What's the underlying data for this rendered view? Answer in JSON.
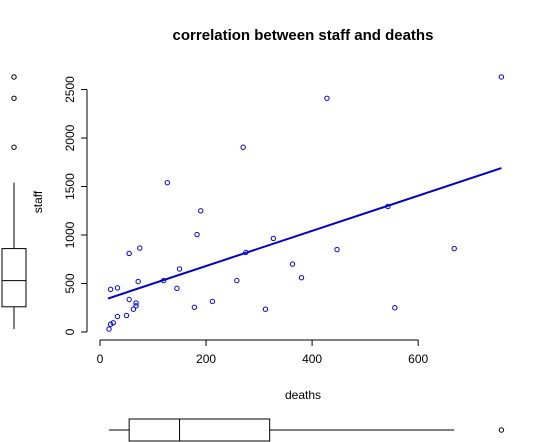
{
  "chart_data": {
    "type": "scatter",
    "title": "correlation between staff and deaths",
    "xlabel": "deaths",
    "ylabel": "staff",
    "xlim": [
      0,
      760
    ],
    "ylim": [
      0,
      2650
    ],
    "x_ticks": [
      0,
      200,
      400,
      600
    ],
    "y_ticks": [
      0,
      500,
      1000,
      1500,
      2000,
      2500
    ],
    "point_color": "#0000ff",
    "regression_line": {
      "x": [
        15,
        757
      ],
      "y": [
        345,
        1690
      ],
      "color": "#0000cd"
    },
    "points": [
      {
        "x": 17,
        "y": 30
      },
      {
        "x": 20,
        "y": 80
      },
      {
        "x": 25,
        "y": 95
      },
      {
        "x": 20,
        "y": 440
      },
      {
        "x": 33,
        "y": 160
      },
      {
        "x": 33,
        "y": 455
      },
      {
        "x": 50,
        "y": 170
      },
      {
        "x": 55,
        "y": 335
      },
      {
        "x": 55,
        "y": 810
      },
      {
        "x": 63,
        "y": 235
      },
      {
        "x": 68,
        "y": 270
      },
      {
        "x": 68,
        "y": 300
      },
      {
        "x": 72,
        "y": 520
      },
      {
        "x": 75,
        "y": 865
      },
      {
        "x": 120,
        "y": 530
      },
      {
        "x": 127,
        "y": 1540
      },
      {
        "x": 145,
        "y": 450
      },
      {
        "x": 150,
        "y": 650
      },
      {
        "x": 178,
        "y": 255
      },
      {
        "x": 183,
        "y": 1005
      },
      {
        "x": 190,
        "y": 1250
      },
      {
        "x": 212,
        "y": 315
      },
      {
        "x": 258,
        "y": 530
      },
      {
        "x": 270,
        "y": 1905
      },
      {
        "x": 275,
        "y": 820
      },
      {
        "x": 312,
        "y": 235
      },
      {
        "x": 327,
        "y": 965
      },
      {
        "x": 363,
        "y": 700
      },
      {
        "x": 380,
        "y": 560
      },
      {
        "x": 428,
        "y": 2410
      },
      {
        "x": 447,
        "y": 850
      },
      {
        "x": 543,
        "y": 1295
      },
      {
        "x": 556,
        "y": 250
      },
      {
        "x": 668,
        "y": 860
      },
      {
        "x": 757,
        "y": 2630
      }
    ],
    "boxplot_x": {
      "min": 17,
      "q1": 55,
      "median": 150,
      "q3": 320,
      "whisker_max": 668,
      "outliers": [
        757
      ]
    },
    "boxplot_y": {
      "min": 30,
      "q1": 260,
      "median": 530,
      "q3": 860,
      "whisker_max": 1540,
      "outliers": [
        1905,
        2410,
        2630
      ]
    }
  }
}
